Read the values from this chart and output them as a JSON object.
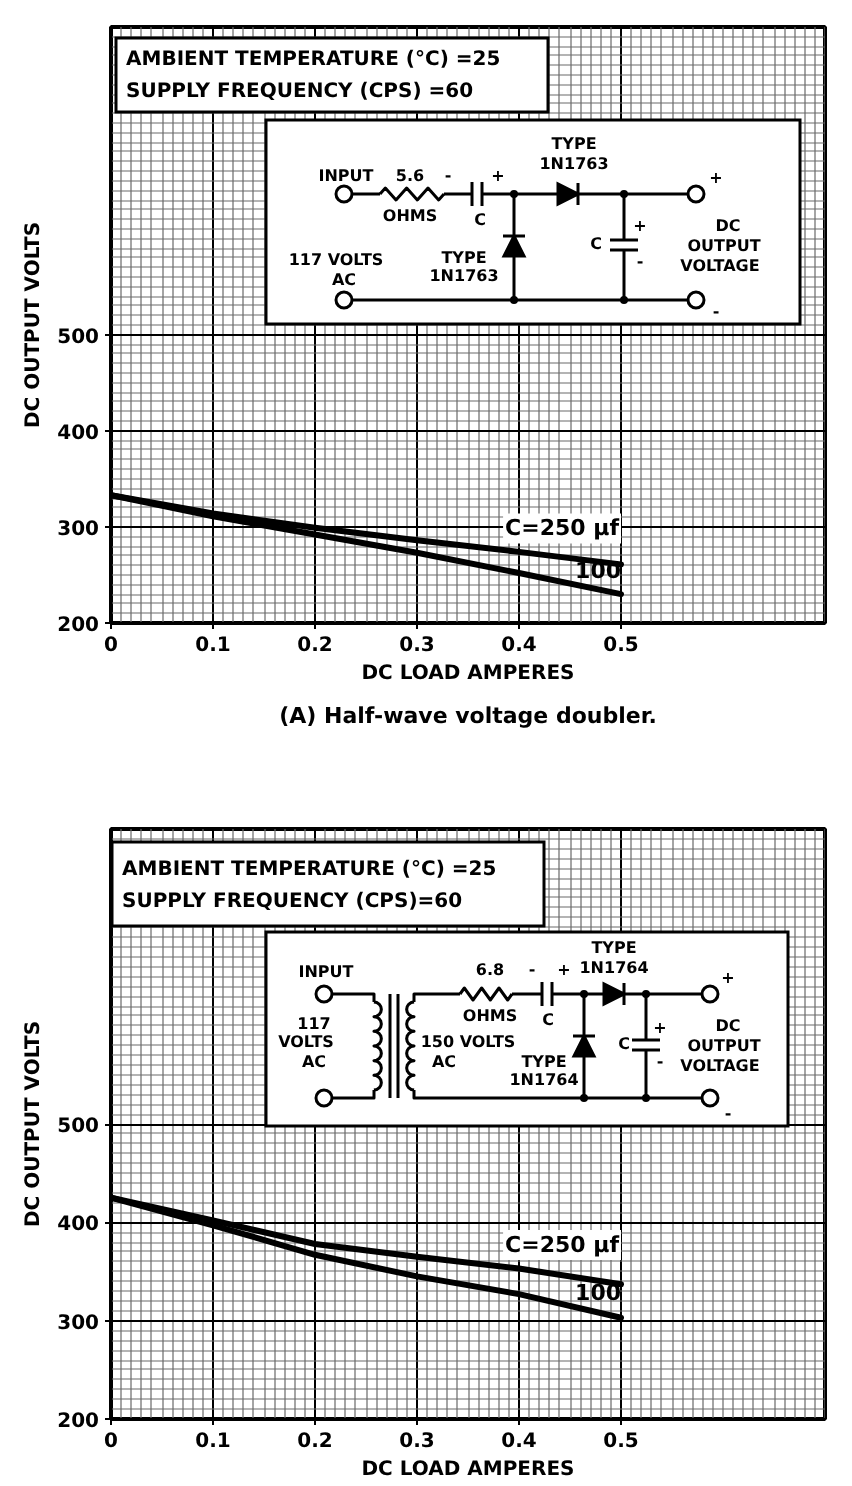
{
  "chart_data": [
    {
      "type": "line",
      "xlabel": "DC LOAD AMPERES",
      "ylabel": "DC OUTPUT VOLTS",
      "x": [
        0,
        0.1,
        0.2,
        0.3,
        0.4,
        0.5
      ],
      "xlim": [
        0,
        0.7
      ],
      "xticks": [
        0,
        0.1,
        0.2,
        0.3,
        0.4,
        0.5
      ],
      "ylim": [
        200,
        820
      ],
      "yticks": [
        200,
        300,
        400,
        500
      ],
      "grid": true,
      "series": [
        {
          "name": "C=250 μf",
          "color": "#000000",
          "values": [
            333,
            314,
            299,
            286,
            274,
            261
          ]
        },
        {
          "name": "100",
          "color": "#000000",
          "values": [
            333,
            311,
            292,
            273,
            252,
            230
          ]
        }
      ],
      "annotations": [
        "AMBIENT TEMPERATURE (°C) =25",
        "SUPPLY FREQUENCY (CPS) =60",
        "INPUT",
        "5.6",
        "-",
        "+",
        "OHMS",
        "C",
        "TYPE",
        "1N1763",
        "+",
        "117 VOLTS",
        "AC",
        "TYPE",
        "1N1763",
        "C",
        "+",
        "-",
        "DC",
        "OUTPUT",
        "VOLTAGE",
        "-",
        "(A) Half-wave voltage doubler."
      ]
    },
    {
      "type": "line",
      "xlabel": "DC LOAD AMPERES",
      "ylabel": "DC OUTPUT VOLTS",
      "x": [
        0,
        0.1,
        0.2,
        0.3,
        0.4,
        0.5
      ],
      "xlim": [
        0,
        0.7
      ],
      "xticks": [
        0,
        0.1,
        0.2,
        0.3,
        0.4,
        0.5
      ],
      "ylim": [
        200,
        800
      ],
      "yticks": [
        200,
        300,
        400,
        500
      ],
      "grid": true,
      "series": [
        {
          "name": "C=250 μf",
          "color": "#000000",
          "values": [
            425,
            402,
            378,
            365,
            353,
            337
          ]
        },
        {
          "name": "100",
          "color": "#000000",
          "values": [
            425,
            397,
            367,
            345,
            327,
            303
          ]
        }
      ],
      "annotations": [
        "AMBIENT TEMPERATURE (°C) =25",
        "SUPPLY FREQUENCY (CPS)=60",
        "INPUT",
        "117",
        "VOLTS",
        "AC",
        "150 VOLTS",
        "AC",
        "6.8",
        "-",
        "+",
        "OHMS",
        "C",
        "TYPE",
        "1N1764",
        "+",
        "TYPE",
        "1N1764",
        "C",
        "+",
        "-",
        "DC",
        "OUTPUT",
        "VOLTAGE",
        "-"
      ]
    }
  ]
}
